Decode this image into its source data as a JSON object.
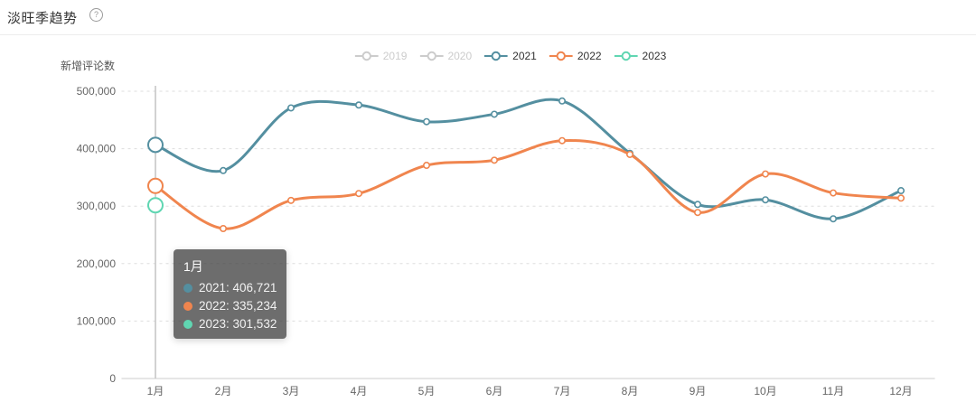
{
  "page": {
    "title": "淡旺季趋势",
    "help_glyph": "?"
  },
  "colors": {
    "series_2021": "#548fa0",
    "series_2022": "#f0854e",
    "series_2023": "#60d6b2",
    "legend_inactive": "#cccccc",
    "axis_label": "#666666",
    "grid_line": "#dddddd",
    "axis_line": "#cccccc",
    "axis_pointer": "#c4c4c4",
    "tooltip_bg": "rgba(60,60,60,0.75)"
  },
  "chart_data": {
    "type": "line",
    "title": "淡旺季趋势",
    "ylabel": "新增评论数",
    "xlabel": "",
    "ylim": [
      0,
      500000
    ],
    "grid": true,
    "smooth": true,
    "legend_position": "top-center",
    "categories": [
      "1月",
      "2月",
      "3月",
      "4月",
      "5月",
      "6月",
      "7月",
      "8月",
      "9月",
      "10月",
      "11月",
      "12月"
    ],
    "ytick_values": [
      0,
      100000,
      200000,
      300000,
      400000,
      500000
    ],
    "ytick_labels": [
      "0",
      "100,000",
      "200,000",
      "300,000",
      "400,000",
      "500,000"
    ],
    "series": [
      {
        "name": "2019",
        "active": false,
        "color": "#cccccc",
        "values": []
      },
      {
        "name": "2020",
        "active": false,
        "color": "#cccccc",
        "values": []
      },
      {
        "name": "2021",
        "active": true,
        "color": "#548fa0",
        "values": [
          406721,
          362000,
          471000,
          476000,
          447000,
          460000,
          483000,
          392000,
          303000,
          311000,
          278000,
          327000
        ]
      },
      {
        "name": "2022",
        "active": true,
        "color": "#f0854e",
        "values": [
          335234,
          261000,
          310000,
          322000,
          371000,
          380000,
          414000,
          390000,
          289000,
          356000,
          323000,
          314000
        ]
      },
      {
        "name": "2023",
        "active": true,
        "color": "#60d6b2",
        "values": [
          301532,
          null,
          null,
          null,
          null,
          null,
          null,
          null,
          null,
          null,
          null,
          null
        ]
      }
    ],
    "axis_pointer": {
      "month_index": 0
    },
    "tooltip": {
      "title": "1月",
      "items": [
        {
          "name": "2021",
          "value": "406,721",
          "color": "#548fa0"
        },
        {
          "name": "2022",
          "value": "335,234",
          "color": "#f0854e"
        },
        {
          "name": "2023",
          "value": "301,532",
          "color": "#60d6b2"
        }
      ]
    }
  }
}
